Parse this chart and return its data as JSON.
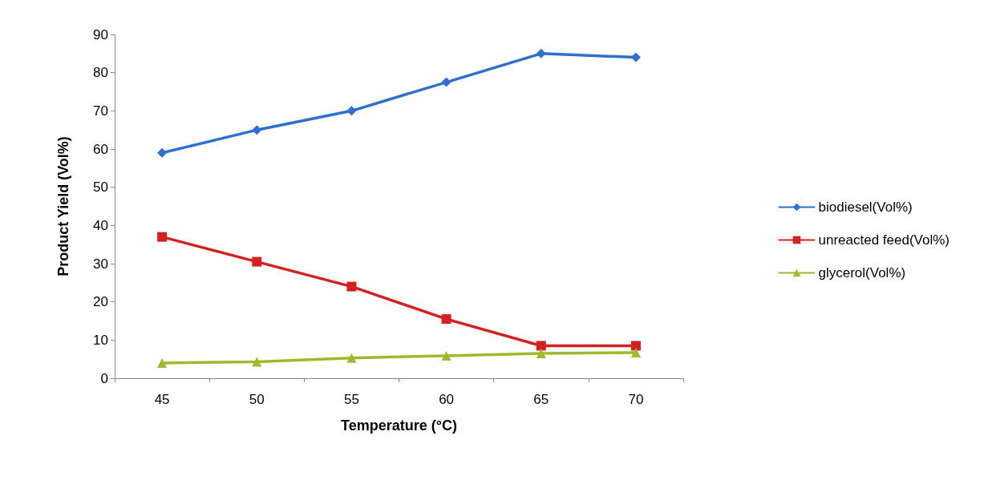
{
  "chart_data": {
    "type": "line",
    "xlabel": "Temperature (°C)",
    "ylabel": "Product Yield (Vol%)",
    "categories": [
      "45",
      "50",
      "55",
      "60",
      "65",
      "70"
    ],
    "ylim": [
      0,
      90
    ],
    "yticks": [
      0,
      10,
      20,
      30,
      40,
      50,
      60,
      70,
      80,
      90
    ],
    "grid": false,
    "legend": "right",
    "line_style": "solid",
    "series": [
      {
        "name": "biodiesel(Vol%)",
        "color": "#2e6fd0",
        "marker": "diamond",
        "values": [
          59,
          65,
          70,
          77.5,
          85,
          84
        ]
      },
      {
        "name": "unreacted feed(Vol%)",
        "color": "#d42020",
        "marker": "square",
        "values": [
          37,
          30.5,
          24,
          15.5,
          8.5,
          8.5
        ]
      },
      {
        "name": "glycerol(Vol%)",
        "color": "#9bbb2c",
        "marker": "triangle",
        "values": [
          4,
          4.3,
          5.3,
          5.9,
          6.5,
          6.7
        ]
      }
    ]
  }
}
